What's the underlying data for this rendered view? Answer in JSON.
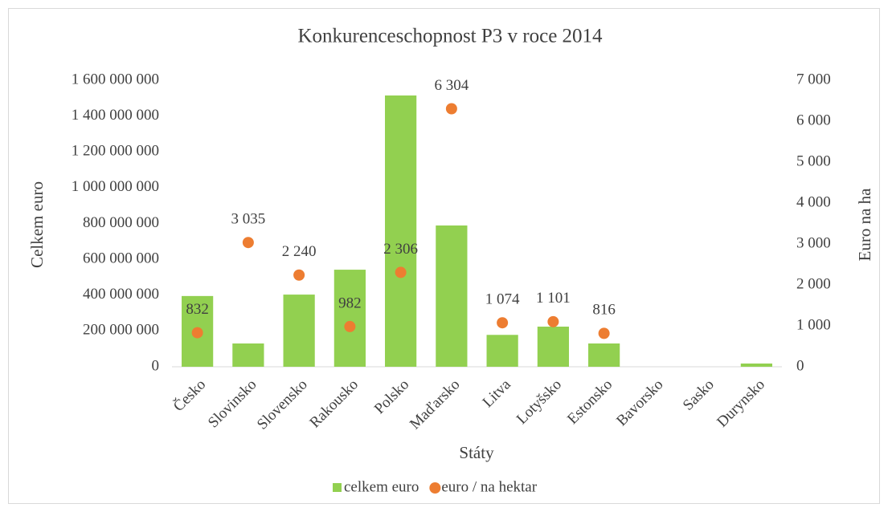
{
  "chart_data": {
    "type": "bar",
    "title": "Konkurenceschopnost P3 v roce 2014",
    "x_label": "Státy",
    "y_label": "Celkem euro",
    "y2_label": "Euro na ha",
    "categories": [
      "Česko",
      "Slovinsko",
      "Slovensko",
      "Rakousko",
      "Polsko",
      "Maďarsko",
      "Litva",
      "Lotyšsko",
      "Estonsko",
      "Bavorsko",
      "Sasko",
      "Durynsko"
    ],
    "series": [
      {
        "name": "celkem euro",
        "type": "bar",
        "color": "#92d050",
        "axis": "y",
        "values": [
          395000000,
          130000000,
          403000000,
          542000000,
          1515000000,
          789000000,
          178000000,
          224000000,
          130000000,
          0,
          0,
          18000000
        ]
      },
      {
        "name": "euro / na hektar",
        "type": "scatter",
        "color": "#ed7d31",
        "axis": "y2",
        "values": [
          832,
          3035,
          2240,
          982,
          2306,
          6304,
          1074,
          1101,
          816,
          null,
          null,
          null
        ],
        "value_labels": [
          "832",
          "3 035",
          "2 240",
          "982",
          "2 306",
          "6 304",
          "1 074",
          "1 101",
          "816",
          null,
          null,
          null
        ]
      }
    ],
    "ylim": [
      0,
      1600000000
    ],
    "yticks": [
      0,
      {
        "value": 200000000,
        "label": "200 000 000"
      },
      {
        "value": 400000000,
        "label": "400 000 000"
      },
      {
        "value": 600000000,
        "label": "600 000 000"
      },
      {
        "value": 800000000,
        "label": "800 000 000"
      },
      {
        "value": 1000000000,
        "label": "1 000 000 000"
      },
      {
        "value": 1200000000,
        "label": "1 200 000 000"
      },
      {
        "value": 1400000000,
        "label": "1 400 000 000"
      },
      {
        "value": 1600000000,
        "label": "1 600 000 000"
      }
    ],
    "y2lim": [
      0,
      7000
    ],
    "y2ticks": [
      0,
      {
        "value": 1000,
        "label": "1 000"
      },
      {
        "value": 2000,
        "label": "2 000"
      },
      {
        "value": 3000,
        "label": "3 000"
      },
      {
        "value": 4000,
        "label": "4 000"
      },
      {
        "value": 5000,
        "label": "5 000"
      },
      {
        "value": 6000,
        "label": "6 000"
      },
      {
        "value": 7000,
        "label": "7 000"
      }
    ],
    "grid": false,
    "legend": "bottom"
  }
}
